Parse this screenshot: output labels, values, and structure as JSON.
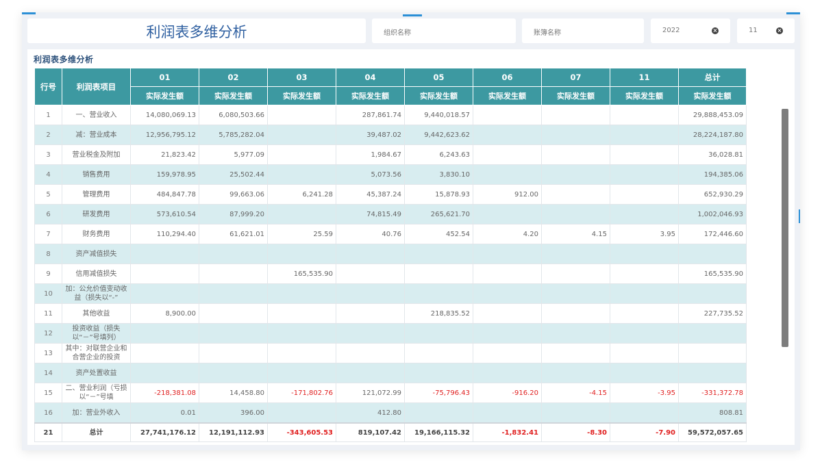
{
  "title": "利润表多维分析",
  "filters": {
    "org_placeholder": "组织名称",
    "book_placeholder": "账簿名称",
    "year": "2022",
    "period": "11",
    "clear_icon": "close-circle-icon"
  },
  "panel_title": "利润表多维分析",
  "table": {
    "col_index": "行号",
    "col_item": "利润表项目",
    "periods": [
      "01",
      "02",
      "03",
      "04",
      "05",
      "06",
      "07",
      "11",
      "总计"
    ],
    "sub_header": "实际发生额",
    "rows": [
      {
        "idx": "1",
        "item": "一、营业收入",
        "vals": [
          "14,080,069.13",
          "6,080,503.66",
          "",
          "287,861.74",
          "9,440,018.57",
          "",
          "",
          "",
          "29,888,453.09"
        ]
      },
      {
        "idx": "2",
        "item": "减：营业成本",
        "vals": [
          "12,956,795.12",
          "5,785,282.04",
          "",
          "39,487.02",
          "9,442,623.62",
          "",
          "",
          "",
          "28,224,187.80"
        ]
      },
      {
        "idx": "3",
        "item": "营业税金及附加",
        "vals": [
          "21,823.42",
          "5,977.09",
          "",
          "1,984.67",
          "6,243.63",
          "",
          "",
          "",
          "36,028.81"
        ]
      },
      {
        "idx": "4",
        "item": "销售费用",
        "vals": [
          "159,978.95",
          "25,502.44",
          "",
          "5,073.56",
          "3,830.10",
          "",
          "",
          "",
          "194,385.06"
        ]
      },
      {
        "idx": "5",
        "item": "管理费用",
        "vals": [
          "484,847.78",
          "99,663.06",
          "6,241.28",
          "45,387.24",
          "15,878.93",
          "912.00",
          "",
          "",
          "652,930.29"
        ]
      },
      {
        "idx": "6",
        "item": "研发费用",
        "vals": [
          "573,610.54",
          "87,999.20",
          "",
          "74,815.49",
          "265,621.70",
          "",
          "",
          "",
          "1,002,046.93"
        ]
      },
      {
        "idx": "7",
        "item": "财务费用",
        "vals": [
          "110,294.40",
          "61,621.01",
          "25.59",
          "40.76",
          "452.54",
          "4.20",
          "4.15",
          "3.95",
          "172,446.60"
        ]
      },
      {
        "idx": "8",
        "item": "资产减值损失",
        "vals": [
          "",
          "",
          "",
          "",
          "",
          "",
          "",
          "",
          ""
        ]
      },
      {
        "idx": "9",
        "item": "信用减值损失",
        "vals": [
          "",
          "",
          "165,535.90",
          "",
          "",
          "",
          "",
          "",
          "165,535.90"
        ]
      },
      {
        "idx": "10",
        "item": "加：公允价值变动收益（损失以“-”",
        "vals": [
          "",
          "",
          "",
          "",
          "",
          "",
          "",
          "",
          ""
        ]
      },
      {
        "idx": "11",
        "item": "其他收益",
        "vals": [
          "8,900.00",
          "",
          "",
          "",
          "218,835.52",
          "",
          "",
          "",
          "227,735.52"
        ]
      },
      {
        "idx": "12",
        "item": "投资收益（损失以“－”号填列）",
        "vals": [
          "",
          "",
          "",
          "",
          "",
          "",
          "",
          "",
          ""
        ]
      },
      {
        "idx": "13",
        "item": "其中：对联营企业和合营企业的投资",
        "vals": [
          "",
          "",
          "",
          "",
          "",
          "",
          "",
          "",
          ""
        ]
      },
      {
        "idx": "14",
        "item": "资产处置收益",
        "vals": [
          "",
          "",
          "",
          "",
          "",
          "",
          "",
          "",
          ""
        ]
      },
      {
        "idx": "15",
        "item": "二、营业利润（亏损以“－”号填",
        "vals": [
          "-218,381.08",
          "14,458.80",
          "-171,802.76",
          "121,072.99",
          "-75,796.43",
          "-916.20",
          "-4.15",
          "-3.95",
          "-331,372.78"
        ]
      },
      {
        "idx": "16",
        "item": "加：营业外收入",
        "vals": [
          "0.01",
          "396.00",
          "",
          "412.80",
          "",
          "",
          "",
          "",
          "808.81"
        ]
      }
    ],
    "total": {
      "idx": "21",
      "item": "总计",
      "vals": [
        "27,741,176.12",
        "12,191,112.93",
        "-343,605.53",
        "819,107.42",
        "19,166,115.32",
        "-1,832.41",
        "-8.30",
        "-7.90",
        "59,572,057.65"
      ]
    }
  },
  "colors": {
    "header": "#3d99a1",
    "alt_row": "#d8edf0",
    "negative": "#e02020",
    "title": "#2e5fa0"
  }
}
